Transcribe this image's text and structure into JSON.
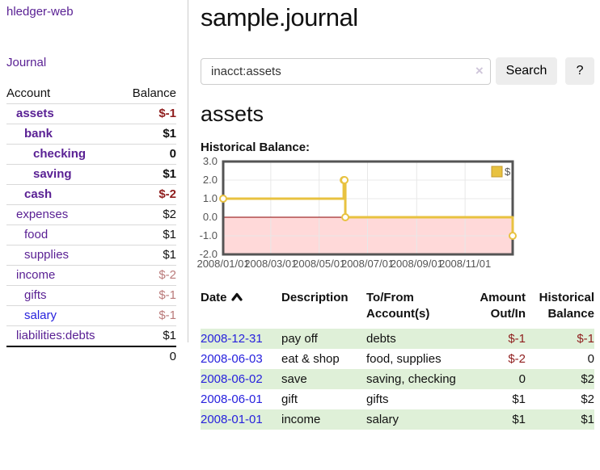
{
  "app": {
    "title": "hledger-web"
  },
  "sidebar": {
    "journal_link": "Journal",
    "headers": {
      "account": "Account",
      "balance": "Balance"
    },
    "accounts": [
      {
        "name": "assets",
        "balance": "$-1"
      },
      {
        "name": "bank",
        "balance": "$1"
      },
      {
        "name": "checking",
        "balance": "0"
      },
      {
        "name": "saving",
        "balance": "$1"
      },
      {
        "name": "cash",
        "balance": "$-2"
      },
      {
        "name": "expenses",
        "balance": "$2"
      },
      {
        "name": "food",
        "balance": "$1"
      },
      {
        "name": "supplies",
        "balance": "$1"
      },
      {
        "name": "income",
        "balance": "$-2"
      },
      {
        "name": "gifts",
        "balance": "$-1"
      },
      {
        "name": "salary",
        "balance": "$-1"
      },
      {
        "name": "liabilities:debts",
        "balance": "$1"
      }
    ],
    "total": "0"
  },
  "main": {
    "title": "sample.journal",
    "search": {
      "value": "inacct:assets",
      "clear_icon": "×",
      "button_label": "Search",
      "help_label": "?"
    },
    "account_heading": "assets",
    "chart_label": "Historical Balance:"
  },
  "chart_data": {
    "type": "line",
    "step": true,
    "title": "Historical Balance:",
    "x_range": [
      "2008-01-01",
      "2008-12-31"
    ],
    "ylim": [
      -2,
      3
    ],
    "y_ticks": [
      3,
      2,
      1,
      0,
      -1,
      -2
    ],
    "x_ticks": [
      {
        "label": "2008/01/01",
        "date": "2008-01-01"
      },
      {
        "label": "2008/03/01",
        "date": "2008-03-01"
      },
      {
        "label": "2008/05/01",
        "date": "2008-05-01"
      },
      {
        "label": "2008/07/01",
        "date": "2008-07-01"
      },
      {
        "label": "2008/09/01",
        "date": "2008-09-01"
      },
      {
        "label": "2008/11/01",
        "date": "2008-11-01"
      }
    ],
    "series": [
      {
        "name": "$",
        "color": "#e8c240",
        "marker_fill": "#ffffff",
        "points": [
          {
            "date": "2008-01-01",
            "value": 1
          },
          {
            "date": "2008-06-01",
            "value": 2
          },
          {
            "date": "2008-06-02",
            "value": 2
          },
          {
            "date": "2008-06-03",
            "value": 0
          },
          {
            "date": "2008-12-31",
            "value": -1
          }
        ]
      }
    ],
    "legend_position": "top-right",
    "grid": true,
    "grid_color": "#e8e8e8",
    "border_color": "#545454",
    "zero_line_color": "#8b0000",
    "negative_fill": "#ffd9d9",
    "label_color": "#545454"
  },
  "register": {
    "headers": [
      "Date",
      "Description",
      "To/From Account(s)",
      "Amount Out/In",
      "Historical Balance"
    ],
    "rows": [
      {
        "date": "2008-12-31",
        "description": "pay off",
        "accounts": "debts",
        "amount": "$-1",
        "balance": "$-1"
      },
      {
        "date": "2008-06-03",
        "description": "eat & shop",
        "accounts": "food, supplies",
        "amount": "$-2",
        "balance": "0"
      },
      {
        "date": "2008-06-02",
        "description": "save",
        "accounts": "saving, checking",
        "amount": "0",
        "balance": "$2"
      },
      {
        "date": "2008-06-01",
        "description": "gift",
        "accounts": "gifts",
        "amount": "$1",
        "balance": "$2"
      },
      {
        "date": "2008-01-01",
        "description": "income",
        "accounts": "salary",
        "amount": "$1",
        "balance": "$1"
      }
    ]
  }
}
